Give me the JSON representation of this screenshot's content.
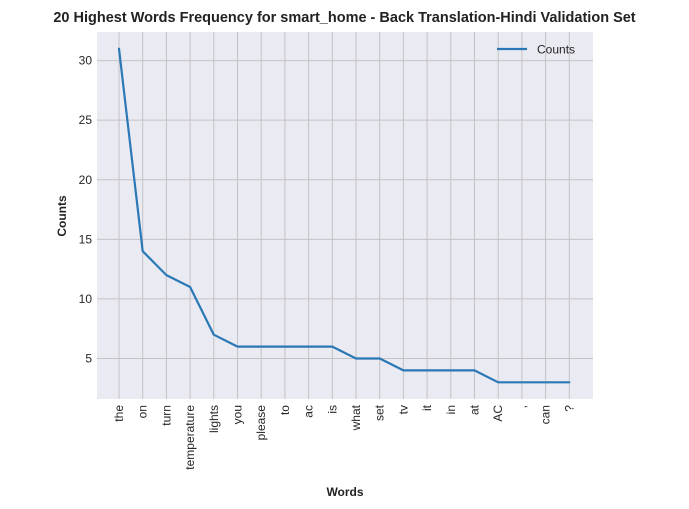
{
  "chart_data": {
    "type": "line",
    "title": "20 Highest Words Frequency for smart_home - Back Translation-Hindi Validation Set",
    "xlabel": "Words",
    "ylabel": "Counts",
    "categories": [
      "the",
      "on",
      "turn",
      "temperature",
      "lights",
      "you",
      "please",
      "to",
      "ac",
      "is",
      "what",
      "set",
      "tv",
      "it",
      "in",
      "at",
      "AC",
      ",",
      "can",
      "?"
    ],
    "series": [
      {
        "name": "Counts",
        "values": [
          31,
          14,
          12,
          11,
          7,
          6,
          6,
          6,
          6,
          6,
          5,
          5,
          4,
          4,
          4,
          4,
          3,
          3,
          3,
          3
        ]
      }
    ],
    "yticks": [
      5,
      10,
      15,
      20,
      25,
      30
    ],
    "ylim": [
      1.6,
      32.4
    ],
    "grid": true,
    "legend_position": "top-right",
    "line_color": "#2a78b6",
    "plot_background": "#eaeaf2",
    "grid_color": "#c3c3c6"
  }
}
